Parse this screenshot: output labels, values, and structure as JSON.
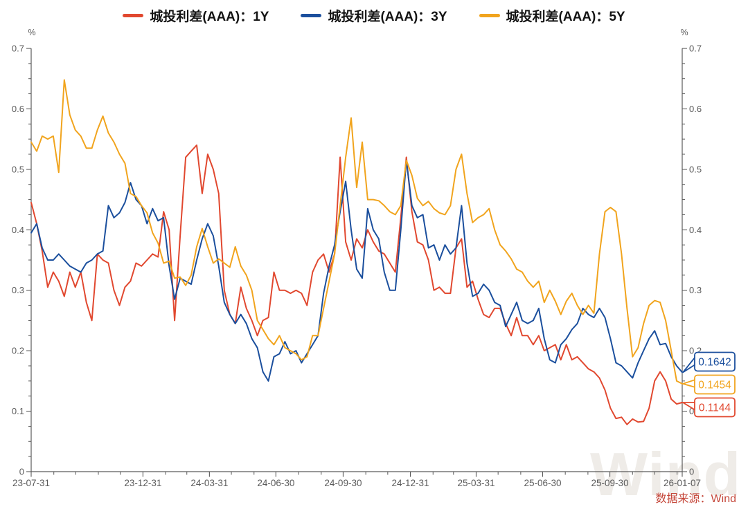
{
  "page": {
    "watermark": "Wind",
    "source_text": "数据来源：Wind"
  },
  "legend": {
    "items": [
      {
        "label": "城投利差(AAA)：1Y",
        "color": "#E1482F"
      },
      {
        "label": "城投利差(AAA)：3Y",
        "color": "#1B4F9D"
      },
      {
        "label": "城投利差(AAA)：5Y",
        "color": "#F1A41D"
      }
    ]
  },
  "chart_data": {
    "type": "line",
    "unit": "%",
    "grid": false,
    "legend_position": "top-center",
    "y_axis": {
      "max": 0.7,
      "min": 0,
      "tick_labels": [
        "0.7",
        "0.6",
        "0.5",
        "0.4",
        "0.3",
        "0.2",
        "0.1",
        "0"
      ],
      "minor_step": 0.025,
      "sides": [
        "left",
        "right"
      ]
    },
    "x_axis": {
      "major_labels": [
        "23-07-31",
        "23-12-31",
        "24-03-31",
        "24-06-30",
        "24-09-30",
        "24-12-31",
        "25-03-31",
        "25-06-30",
        "25-09-30",
        "26-01-07"
      ],
      "major_fractions": [
        0,
        0.1717,
        0.2738,
        0.3759,
        0.4792,
        0.5825,
        0.6835,
        0.7856,
        0.8889,
        1.0
      ],
      "minor_fractions": [
        0.0348,
        0.0685,
        0.1032,
        0.1369,
        0.2065,
        0.2391,
        0.3075,
        0.3423,
        0.4108,
        0.4455,
        0.514,
        0.5477,
        0.6173,
        0.6487,
        0.7172,
        0.752,
        0.8204,
        0.8552,
        0.9237,
        0.9574,
        0.9921
      ]
    },
    "series": [
      {
        "id": "1y",
        "name": "城投利差(AAA)：1Y",
        "color": "#E1482F",
        "end_value": "0.1144",
        "values": [
          0.445,
          0.41,
          0.365,
          0.305,
          0.33,
          0.315,
          0.29,
          0.33,
          0.305,
          0.33,
          0.28,
          0.25,
          0.36,
          0.35,
          0.345,
          0.3,
          0.275,
          0.305,
          0.315,
          0.345,
          0.34,
          0.35,
          0.36,
          0.355,
          0.43,
          0.4,
          0.25,
          0.39,
          0.52,
          0.53,
          0.54,
          0.46,
          0.525,
          0.5,
          0.46,
          0.3,
          0.26,
          0.245,
          0.305,
          0.27,
          0.25,
          0.225,
          0.25,
          0.255,
          0.33,
          0.3,
          0.3,
          0.295,
          0.3,
          0.295,
          0.275,
          0.33,
          0.35,
          0.36,
          0.33,
          0.36,
          0.52,
          0.38,
          0.35,
          0.385,
          0.37,
          0.4,
          0.38,
          0.365,
          0.36,
          0.345,
          0.33,
          0.42,
          0.52,
          0.43,
          0.38,
          0.375,
          0.35,
          0.3,
          0.305,
          0.295,
          0.295,
          0.37,
          0.385,
          0.305,
          0.315,
          0.285,
          0.26,
          0.255,
          0.27,
          0.27,
          0.245,
          0.225,
          0.255,
          0.225,
          0.225,
          0.21,
          0.225,
          0.2,
          0.205,
          0.21,
          0.185,
          0.21,
          0.185,
          0.19,
          0.18,
          0.17,
          0.165,
          0.155,
          0.135,
          0.105,
          0.088,
          0.09,
          0.078,
          0.087,
          0.082,
          0.083,
          0.105,
          0.15,
          0.165,
          0.15,
          0.12,
          0.112,
          0.1144
        ]
      },
      {
        "id": "3y",
        "name": "城投利差(AAA)：3Y",
        "color": "#1B4F9D",
        "end_value": "0.1642",
        "values": [
          0.395,
          0.41,
          0.37,
          0.35,
          0.35,
          0.36,
          0.35,
          0.34,
          0.335,
          0.33,
          0.345,
          0.35,
          0.36,
          0.365,
          0.44,
          0.42,
          0.428,
          0.445,
          0.478,
          0.45,
          0.44,
          0.41,
          0.435,
          0.415,
          0.42,
          0.34,
          0.285,
          0.32,
          0.315,
          0.31,
          0.35,
          0.385,
          0.41,
          0.39,
          0.34,
          0.28,
          0.26,
          0.245,
          0.26,
          0.245,
          0.22,
          0.205,
          0.165,
          0.15,
          0.19,
          0.195,
          0.215,
          0.195,
          0.2,
          0.18,
          0.195,
          0.21,
          0.225,
          0.295,
          0.34,
          0.375,
          0.43,
          0.48,
          0.4,
          0.335,
          0.32,
          0.435,
          0.4,
          0.385,
          0.33,
          0.3,
          0.3,
          0.4,
          0.515,
          0.44,
          0.42,
          0.425,
          0.37,
          0.375,
          0.35,
          0.375,
          0.36,
          0.37,
          0.44,
          0.345,
          0.29,
          0.295,
          0.31,
          0.3,
          0.28,
          0.275,
          0.24,
          0.26,
          0.28,
          0.25,
          0.245,
          0.25,
          0.27,
          0.22,
          0.185,
          0.18,
          0.21,
          0.22,
          0.235,
          0.245,
          0.27,
          0.26,
          0.255,
          0.27,
          0.255,
          0.22,
          0.18,
          0.175,
          0.165,
          0.155,
          0.18,
          0.2,
          0.22,
          0.233,
          0.21,
          0.212,
          0.19,
          0.175,
          0.1642
        ]
      },
      {
        "id": "5y",
        "name": "城投利差(AAA)：5Y",
        "color": "#F1A41D",
        "end_value": "0.1454",
        "values": [
          0.545,
          0.53,
          0.555,
          0.55,
          0.555,
          0.495,
          0.648,
          0.59,
          0.565,
          0.555,
          0.535,
          0.535,
          0.565,
          0.588,
          0.56,
          0.545,
          0.525,
          0.51,
          0.46,
          0.455,
          0.44,
          0.428,
          0.395,
          0.378,
          0.345,
          0.348,
          0.32,
          0.322,
          0.308,
          0.325,
          0.372,
          0.402,
          0.372,
          0.345,
          0.352,
          0.345,
          0.338,
          0.372,
          0.34,
          0.325,
          0.3,
          0.25,
          0.235,
          0.22,
          0.21,
          0.225,
          0.205,
          0.2,
          0.195,
          0.185,
          0.19,
          0.225,
          0.225,
          0.27,
          0.315,
          0.36,
          0.44,
          0.52,
          0.585,
          0.47,
          0.545,
          0.45,
          0.45,
          0.448,
          0.44,
          0.43,
          0.425,
          0.44,
          0.515,
          0.49,
          0.452,
          0.44,
          0.447,
          0.435,
          0.428,
          0.425,
          0.44,
          0.5,
          0.525,
          0.46,
          0.412,
          0.42,
          0.425,
          0.435,
          0.4,
          0.375,
          0.365,
          0.352,
          0.335,
          0.33,
          0.315,
          0.305,
          0.315,
          0.28,
          0.3,
          0.282,
          0.26,
          0.282,
          0.295,
          0.275,
          0.26,
          0.275,
          0.262,
          0.36,
          0.43,
          0.437,
          0.43,
          0.36,
          0.27,
          0.19,
          0.205,
          0.245,
          0.275,
          0.283,
          0.28,
          0.25,
          0.2,
          0.15,
          0.1454
        ]
      }
    ],
    "end_callouts": [
      {
        "series_id": "3y",
        "label": "0.1642"
      },
      {
        "series_id": "5y",
        "label": "0.1454"
      },
      {
        "series_id": "1y",
        "label": "0.1144"
      }
    ]
  }
}
